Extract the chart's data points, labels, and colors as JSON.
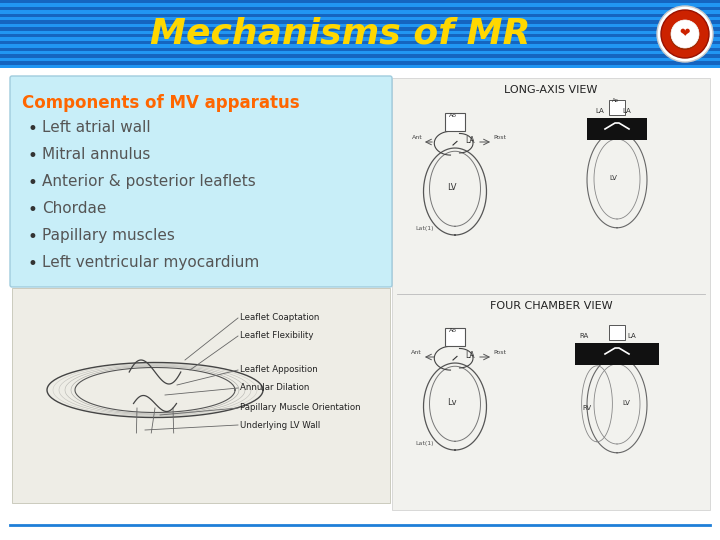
{
  "title": "Mechanisms of MR",
  "title_color": "#FFD700",
  "title_fontsize": 26,
  "header_bg_color": "#1E7FD8",
  "slide_bg_color": "#FFFFFF",
  "textbox_bg_color": "#C8EEF8",
  "textbox_border_color": "#A0CCDD",
  "bullet_heading": "Components of MV apparatus",
  "bullet_heading_color": "#FF6600",
  "bullet_heading_fontsize": 12,
  "bullet_items": [
    "Left atrial wall",
    "Mitral annulus",
    "Anterior & posterior leaflets",
    "Chordae",
    "Papillary muscles",
    "Left ventricular myocardium"
  ],
  "bullet_text_color": "#555555",
  "bullet_fontsize": 11,
  "bottom_line_color": "#1E7FD8",
  "diagram_label_top": "LONG-AXIS VIEW",
  "diagram_label_bottom": "FOUR CHAMBER VIEW",
  "annot_labels": [
    "Leaflet Coaptation",
    "Leaflet Flexibility",
    "Leaflet Apposition",
    "Annular Dilation",
    "Papillary Muscle Orientation",
    "Underlying LV Wall"
  ]
}
